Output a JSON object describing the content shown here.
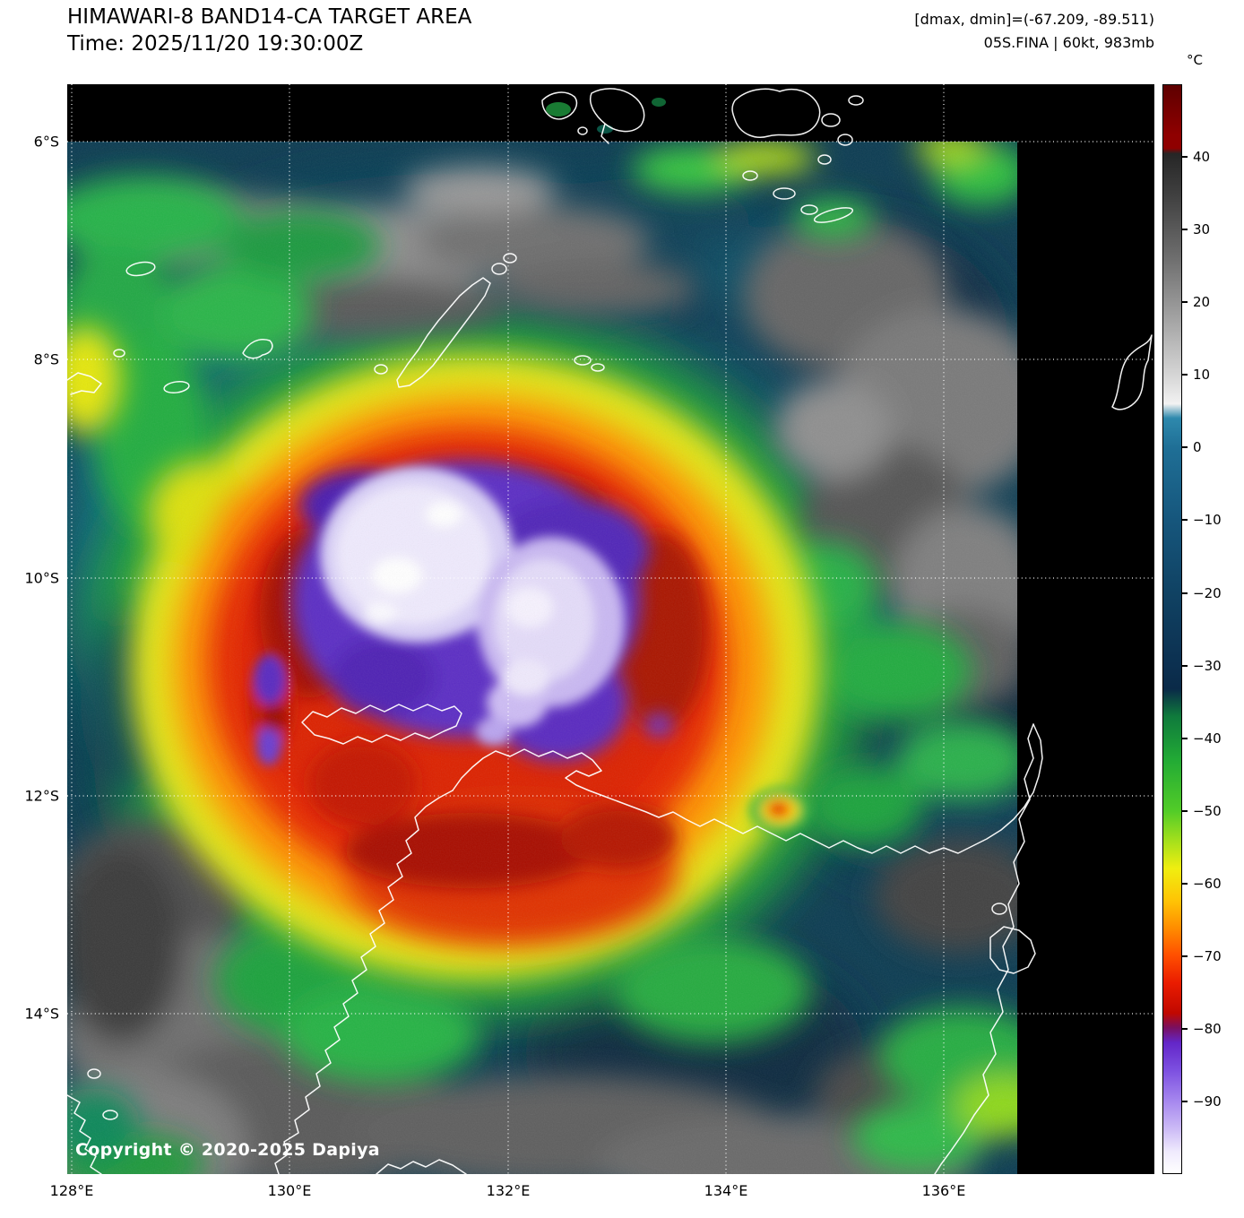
{
  "header": {
    "title": "HIMAWARI-8 BAND14-CA TARGET AREA",
    "time": "Time: 2025/11/20 19:30:00Z",
    "dmax_dmin": "[dmax, dmin]=(-67.209, -89.511)",
    "storm_info": "05S.FINA | 60kt, 983mb"
  },
  "colorbar": {
    "unit": "°C",
    "ticks": [
      "40",
      "30",
      "20",
      "10",
      "0",
      "−10",
      "−20",
      "−30",
      "−40",
      "−50",
      "−60",
      "−70",
      "−80",
      "−90"
    ],
    "palette": {
      "warmest": "#8f0000",
      "warm_gray": "#8f8f8f",
      "ocean_blue": "#16567c",
      "green": "#22aa35",
      "yellow": "#f0ee10",
      "orange": "#ff8c00",
      "red": "#e62800",
      "cold_purple": "#7c4fe0",
      "coldest": "#ffffff"
    }
  },
  "axes": {
    "lat_labels": [
      "6°S",
      "8°S",
      "10°S",
      "12°S",
      "14°S"
    ],
    "lon_labels": [
      "128°E",
      "130°E",
      "132°E",
      "134°E",
      "136°E"
    ]
  },
  "footer": {
    "copyright": "Copyright © 2020-2025 Dapiya"
  }
}
